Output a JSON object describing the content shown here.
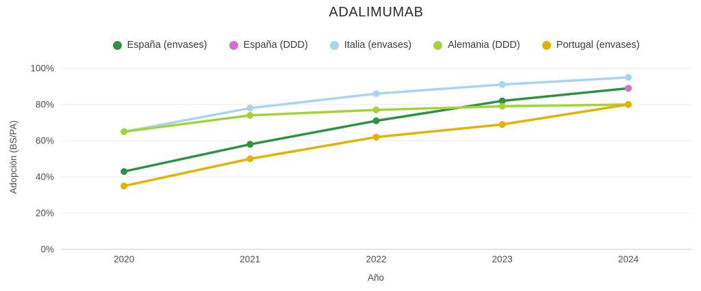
{
  "title": "ADALIMUMAB",
  "colors": {
    "grid": "#e8e8e8",
    "zero_line": "#c9c9c9",
    "title_text": "#2b2b2b",
    "tick_text": "#4c4c4c"
  },
  "chart_data": {
    "type": "line",
    "x": [
      "2020",
      "2021",
      "2022",
      "2023",
      "2024"
    ],
    "series": [
      {
        "name": "España (envases)",
        "color": "#2e9245",
        "values": [
          43,
          58,
          71,
          82,
          89
        ]
      },
      {
        "name": "España (DDD)",
        "color": "#d36fd6",
        "values": [
          null,
          null,
          null,
          null,
          89
        ]
      },
      {
        "name": "Italia (envases)",
        "color": "#a9d4ee",
        "values": [
          65,
          78,
          86,
          91,
          95
        ]
      },
      {
        "name": "Alemania (DDD)",
        "color": "#a4d338",
        "values": [
          65,
          74,
          77,
          79,
          80
        ]
      },
      {
        "name": "Portugal (envases)",
        "color": "#e2b206",
        "values": [
          35,
          50,
          62,
          69,
          80
        ]
      }
    ],
    "xlabel": "Año",
    "ylabel": "Adopción (BS/PA)",
    "ylim": [
      0,
      100
    ],
    "yticks": [
      0,
      20,
      40,
      60,
      80,
      100
    ],
    "ytick_suffix": "%",
    "grid": true,
    "legend_position": "top",
    "marker": "circle"
  }
}
